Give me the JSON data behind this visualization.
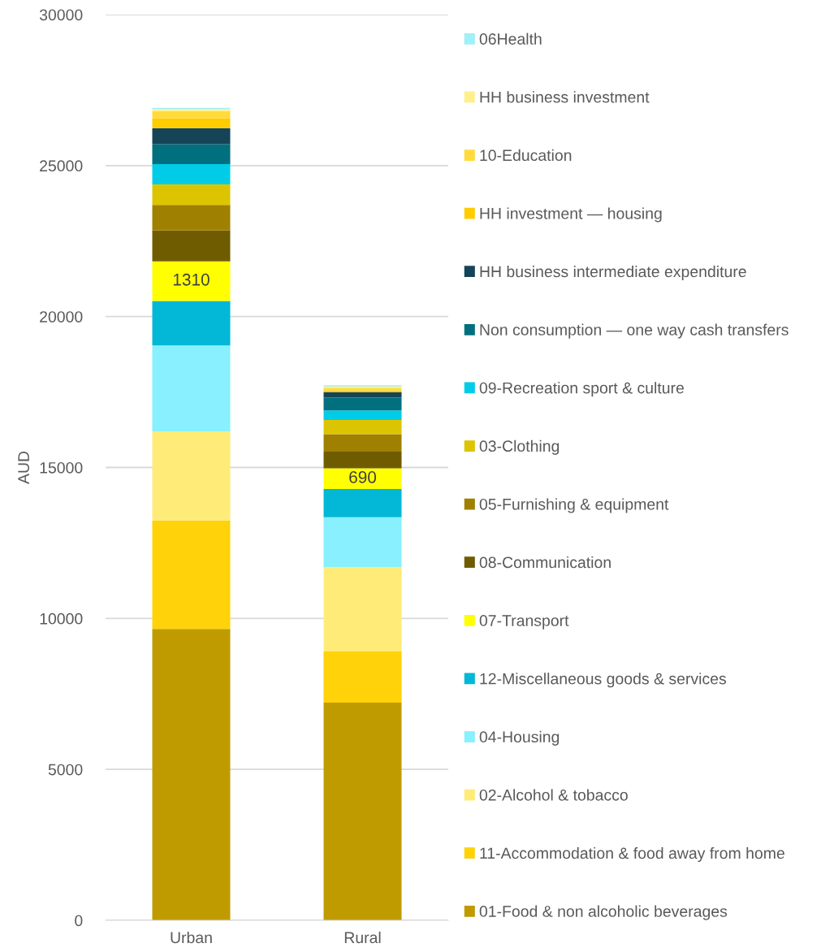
{
  "chart_data": {
    "type": "bar",
    "stacked": true,
    "ylabel": "AUD",
    "categories": [
      "Urban",
      "Rural"
    ],
    "ylim": [
      0,
      30000
    ],
    "yticks": [
      0,
      5000,
      10000,
      15000,
      20000,
      25000,
      30000
    ],
    "grid": "y",
    "legend": "right",
    "series": [
      {
        "name": "01-Food & non alcoholic beverages",
        "color": "#bf9b00",
        "values": [
          9650,
          7210
        ]
      },
      {
        "name": "11-Accommodation & food away from home",
        "color": "#ffd20a",
        "values": [
          3595,
          1695
        ]
      },
      {
        "name": "02-Alcohol & tobacco",
        "color": "#ffec78",
        "values": [
          2951,
          2798
        ]
      },
      {
        "name": "04-Housing",
        "color": "#88f0fe",
        "values": [
          2844,
          1650
        ]
      },
      {
        "name": "12-Miscellaneous goods & services",
        "color": "#03b8d6",
        "values": [
          1479,
          933
        ]
      },
      {
        "name": "07-Transport",
        "color": "#ffff00",
        "values": [
          1310,
          690
        ],
        "value_labels": [
          "1310",
          "690"
        ]
      },
      {
        "name": "08-Communication",
        "color": "#705c00",
        "values": [
          1022,
          547
        ]
      },
      {
        "name": "05-Furnishing & equipment",
        "color": "#a08000",
        "values": [
          845,
          583
        ]
      },
      {
        "name": "03-Clothing",
        "color": "#dcc500",
        "values": [
          680,
          466
        ]
      },
      {
        "name": "09-Recreation sport & culture",
        "color": "#00cce8",
        "values": [
          673,
          315
        ]
      },
      {
        "name": "Non consumption — one way cash transfers",
        "color": "#006f7e",
        "values": [
          662,
          430
        ]
      },
      {
        "name": "HH business intermediate expenditure",
        "color": "#154457",
        "values": [
          528,
          180
        ]
      },
      {
        "name": "HH investment — housing",
        "color": "#ffcc00",
        "values": [
          323,
          54
        ]
      },
      {
        "name": "10-Education",
        "color": "#ffdb3c",
        "values": [
          243,
          71
        ]
      },
      {
        "name": "HH business investment",
        "color": "#fff08c",
        "values": [
          64,
          63
        ]
      },
      {
        "name": "06Health",
        "color": "#a0f0f8",
        "values": [
          43,
          36
        ]
      }
    ]
  }
}
